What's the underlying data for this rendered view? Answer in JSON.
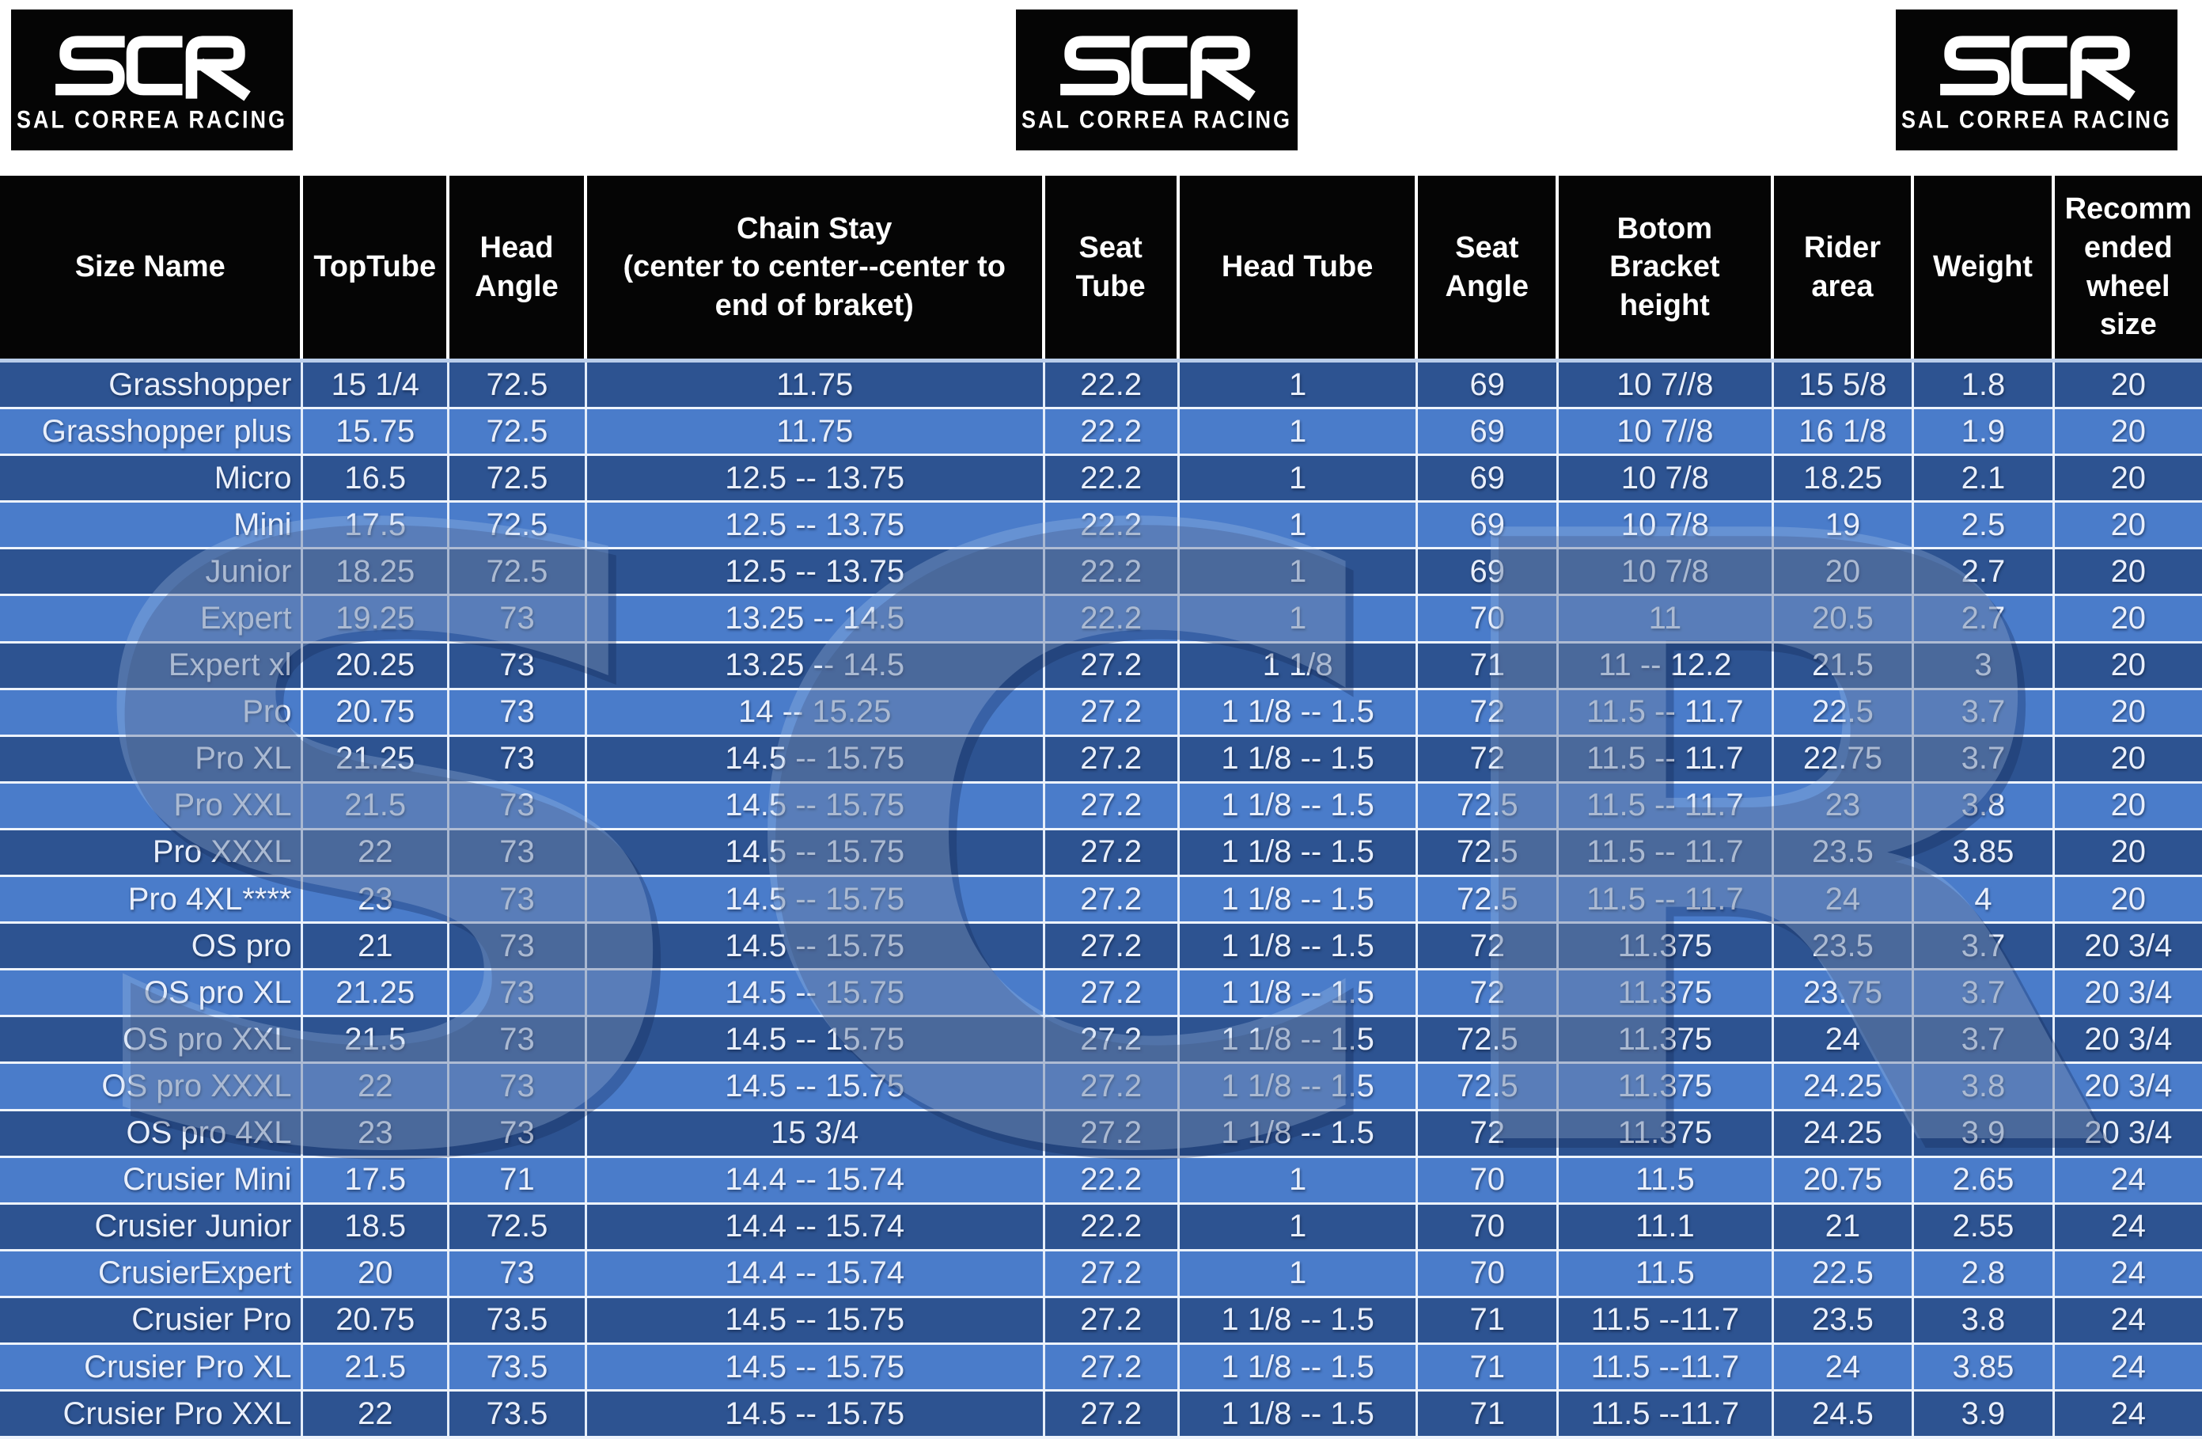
{
  "brand": {
    "acronym": "SCR",
    "name": "SAL CORREA RACING",
    "logo_count": 3
  },
  "watermark": {
    "text": "SCR"
  },
  "table": {
    "colors": {
      "header_bg": "#050505",
      "header_text": "#ffffff",
      "row_dark": "#2d5391",
      "row_light": "#4a7cca",
      "row_text": "#e9effb",
      "grid_line": "#e4edf9"
    },
    "columns": [
      {
        "label": "Size Name",
        "width": 13.78
      },
      {
        "label": "TopTube",
        "width": 6.63
      },
      {
        "label": "Head\nAngle",
        "width": 6.25
      },
      {
        "label": "Chain Stay\n(center to center--center to\nend of braket)",
        "width": 20.79
      },
      {
        "label": "Seat\nTube",
        "width": 6.12
      },
      {
        "label": "Head Tube",
        "width": 10.84
      },
      {
        "label": "Seat\nAngle",
        "width": 6.38
      },
      {
        "label": "Botom\nBracket\nheight",
        "width": 9.76
      },
      {
        "label": "Rider\narea",
        "width": 6.38
      },
      {
        "label": "Weight",
        "width": 6.38
      },
      {
        "label": "Recomm\nended\nwheel\nsize",
        "width": 6.69
      }
    ],
    "rows": [
      [
        "Grasshopper",
        "15 1/4",
        "72.5",
        "11.75",
        "22.2",
        "1",
        "69",
        "10 7//8",
        "15 5/8",
        "1.8",
        "20"
      ],
      [
        "Grasshopper plus",
        "15.75",
        "72.5",
        "11.75",
        "22.2",
        "1",
        "69",
        "10 7//8",
        "16 1/8",
        "1.9",
        "20"
      ],
      [
        "Micro",
        "16.5",
        "72.5",
        "12.5 -- 13.75",
        "22.2",
        "1",
        "69",
        "10 7/8",
        "18.25",
        "2.1",
        "20"
      ],
      [
        "Mini",
        "17.5",
        "72.5",
        "12.5 -- 13.75",
        "22.2",
        "1",
        "69",
        "10 7/8",
        "19",
        "2.5",
        "20"
      ],
      [
        "Junior",
        "18.25",
        "72.5",
        "12.5 -- 13.75",
        "22.2",
        "1",
        "69",
        "10 7/8",
        "20",
        "2.7",
        "20"
      ],
      [
        "Expert",
        "19.25",
        "73",
        "13.25 -- 14.5",
        "22.2",
        "1",
        "70",
        "11",
        "20.5",
        "2.7",
        "20"
      ],
      [
        "Expert xl",
        "20.25",
        "73",
        "13.25 -- 14.5",
        "27.2",
        "1 1/8",
        "71",
        "11 -- 12.2",
        "21.5",
        "3",
        "20"
      ],
      [
        "Pro",
        "20.75",
        "73",
        "14 -- 15.25",
        "27.2",
        "1 1/8 -- 1.5",
        "72",
        "11.5 -- 11.7",
        "22.5",
        "3.7",
        "20"
      ],
      [
        "Pro XL",
        "21.25",
        "73",
        "14.5 -- 15.75",
        "27.2",
        "1 1/8 -- 1.5",
        "72",
        "11.5 -- 11.7",
        "22.75",
        "3.7",
        "20"
      ],
      [
        "Pro XXL",
        "21.5",
        "73",
        "14.5 -- 15.75",
        "27.2",
        "1 1/8 -- 1.5",
        "72.5",
        "11.5 -- 11.7",
        "23",
        "3.8",
        "20"
      ],
      [
        "Pro XXXL",
        "22",
        "73",
        "14.5 -- 15.75",
        "27.2",
        "1 1/8 -- 1.5",
        "72.5",
        "11.5 -- 11.7",
        "23.5",
        "3.85",
        "20"
      ],
      [
        "Pro 4XL****",
        "23",
        "73",
        "14.5 -- 15.75",
        "27.2",
        "1 1/8 -- 1.5",
        "72.5",
        "11.5 -- 11.7",
        "24",
        "4",
        "20"
      ],
      [
        "OS pro",
        "21",
        "73",
        "14.5 -- 15.75",
        "27.2",
        "1 1/8 -- 1.5",
        "72",
        "11.375",
        "23.5",
        "3.7",
        "20 3/4"
      ],
      [
        "OS pro XL",
        "21.25",
        "73",
        "14.5 -- 15.75",
        "27.2",
        "1 1/8 -- 1.5",
        "72",
        "11.375",
        "23.75",
        "3.7",
        "20 3/4"
      ],
      [
        "OS pro XXL",
        "21.5",
        "73",
        "14.5 -- 15.75",
        "27.2",
        "1 1/8 -- 1.5",
        "72.5",
        "11.375",
        "24",
        "3.7",
        "20 3/4"
      ],
      [
        "OS pro XXXL",
        "22",
        "73",
        "14.5 -- 15.75",
        "27.2",
        "1 1/8 -- 1.5",
        "72.5",
        "11.375",
        "24.25",
        "3.8",
        "20 3/4"
      ],
      [
        "OS pro 4XL",
        "23",
        "73",
        "15 3/4",
        "27.2",
        "1 1/8 -- 1.5",
        "72",
        "11.375",
        "24.25",
        "3.9",
        "20 3/4"
      ],
      [
        "Crusier Mini",
        "17.5",
        "71",
        "14.4 -- 15.74",
        "22.2",
        "1",
        "70",
        "11.5",
        "20.75",
        "2.65",
        "24"
      ],
      [
        "Crusier Junior",
        "18.5",
        "72.5",
        "14.4 -- 15.74",
        "22.2",
        "1",
        "70",
        "11.1",
        "21",
        "2.55",
        "24"
      ],
      [
        "CrusierExpert",
        "20",
        "73",
        "14.4 -- 15.74",
        "27.2",
        "1",
        "70",
        "11.5",
        "22.5",
        "2.8",
        "24"
      ],
      [
        "Crusier Pro",
        "20.75",
        "73.5",
        "14.5 -- 15.75",
        "27.2",
        "1 1/8 -- 1.5",
        "71",
        "11.5 --11.7",
        "23.5",
        "3.8",
        "24"
      ],
      [
        "Crusier Pro XL",
        "21.5",
        "73.5",
        "14.5 -- 15.75",
        "27.2",
        "1 1/8 -- 1.5",
        "71",
        "11.5 --11.7",
        "24",
        "3.85",
        "24"
      ],
      [
        "Crusier Pro XXL",
        "22",
        "73.5",
        "14.5 -- 15.75",
        "27.2",
        "1 1/8 -- 1.5",
        "71",
        "11.5 --11.7",
        "24.5",
        "3.9",
        "24"
      ]
    ]
  }
}
